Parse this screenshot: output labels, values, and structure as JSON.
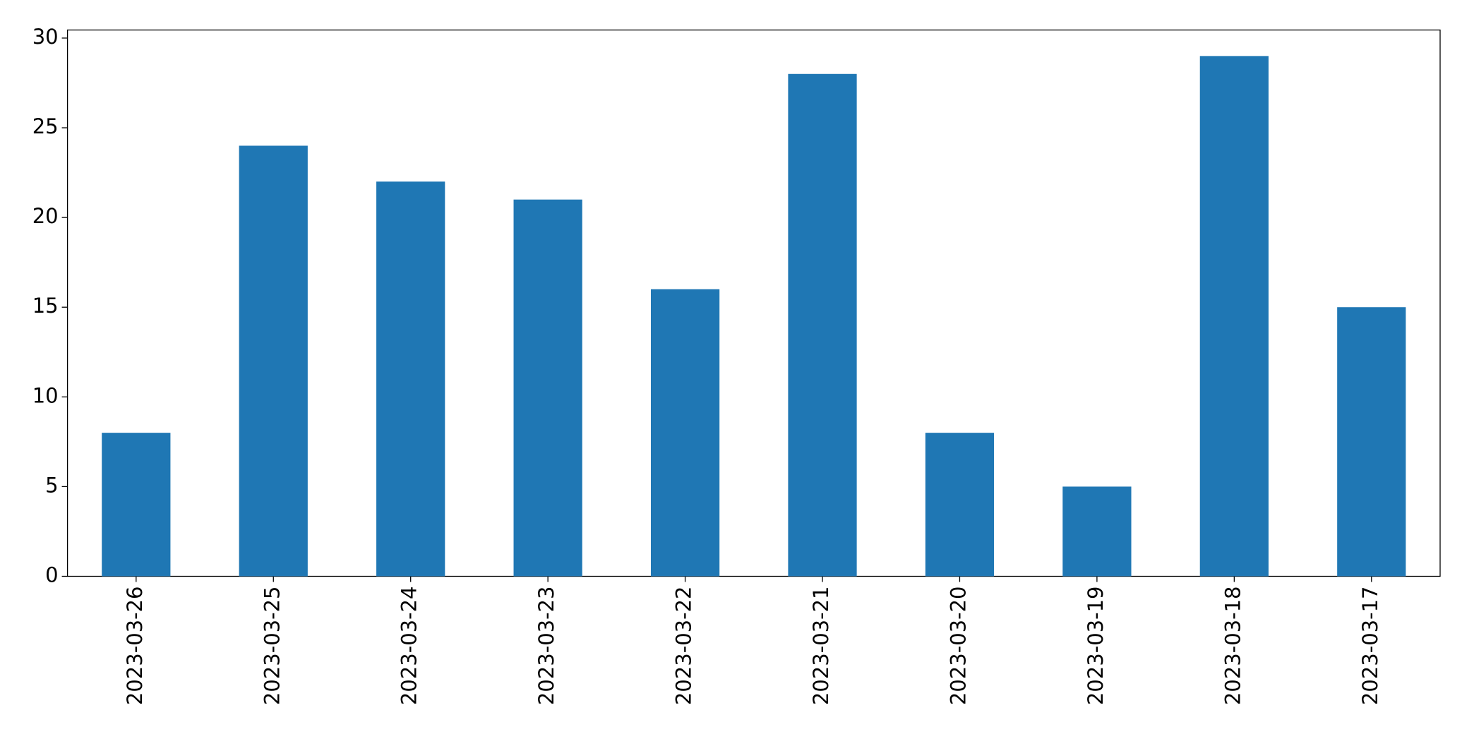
{
  "chart_data": {
    "type": "bar",
    "categories": [
      "2023-03-26",
      "2023-03-25",
      "2023-03-24",
      "2023-03-23",
      "2023-03-22",
      "2023-03-21",
      "2023-03-20",
      "2023-03-19",
      "2023-03-18",
      "2023-03-17"
    ],
    "values": [
      8,
      24,
      22,
      21,
      16,
      28,
      8,
      5,
      29,
      15
    ],
    "color": "#1f77b4",
    "ylim": [
      0,
      30.45
    ],
    "yticks": [
      0,
      5,
      10,
      15,
      20,
      25,
      30
    ],
    "grid": false
  }
}
